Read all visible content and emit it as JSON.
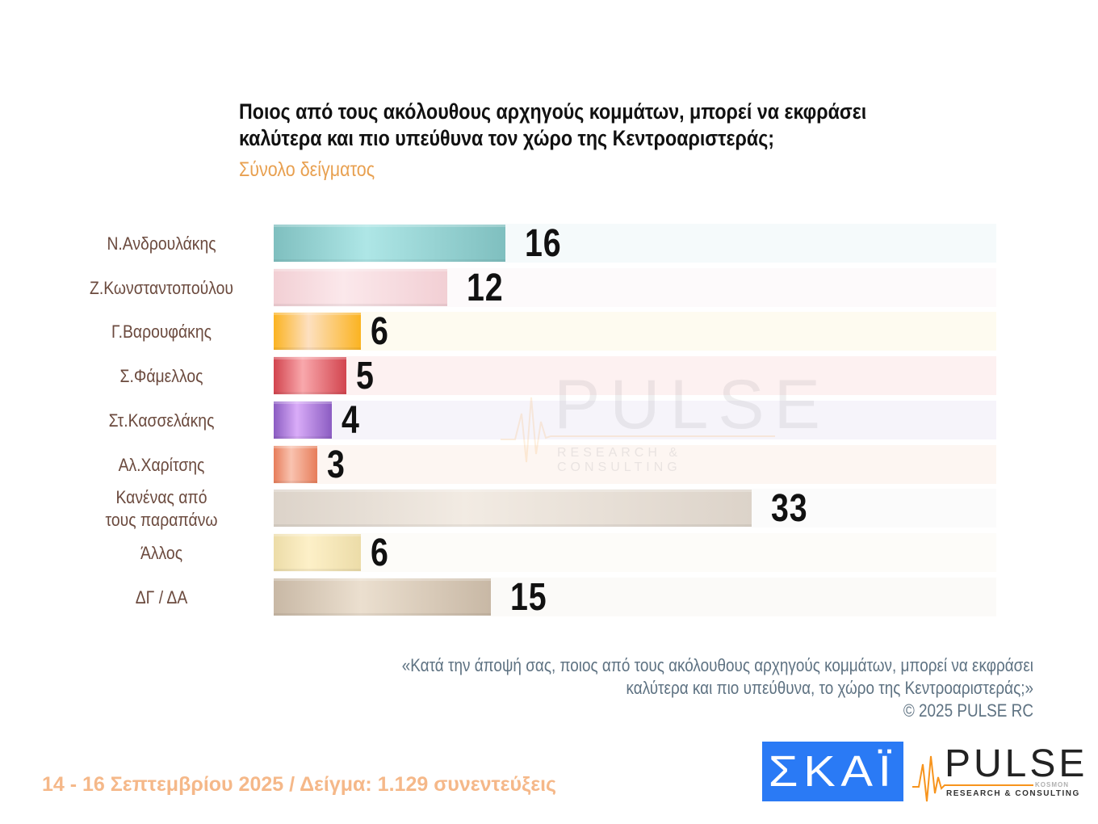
{
  "header": {
    "title_line1": "Ποιος από τους ακόλουθους αρχηγούς κομμάτων, μπορεί να εκφράσει",
    "title_line2": "καλύτερα και πιο υπεύθυνα τον χώρο της Κεντροαριστεράς;",
    "subtitle": "Σύνολο δείγματος"
  },
  "chart_data": {
    "type": "bar",
    "orientation": "horizontal",
    "title": "Ποιος από τους ακόλουθους αρχηγούς κομμάτων, μπορεί να εκφράσει καλύτερα και πιο υπεύθυνα τον χώρο της Κεντροαριστεράς;",
    "subtitle": "Σύνολο δείγματος",
    "xlabel": "",
    "ylabel": "",
    "unit": "%",
    "grid": false,
    "legend": "none",
    "categories": [
      "Ν.Ανδρουλάκης",
      "Ζ.Κωνσταντοπούλου",
      "Γ.Βαρουφάκης",
      "Σ.Φάμελλος",
      "Στ.Κασσελάκης",
      "Αλ.Χαρίτσης",
      "Κανένας από τους παραπάνω",
      "Άλλος",
      "ΔΓ / ΔΑ"
    ],
    "values": [
      16,
      12,
      6,
      5,
      4,
      3,
      33,
      6,
      15
    ]
  },
  "rows": [
    {
      "label": "Ν.Ανδρουλάκης",
      "value": "16",
      "num": 16,
      "color": "#7fbfbf",
      "light": "#aee6e6",
      "bg": "#f5fafb"
    },
    {
      "label": "Ζ.Κωνσταντοπούλου",
      "value": "12",
      "num": 12,
      "color": "#f2cfd4",
      "light": "#fbe8eb",
      "bg": "#fdfafb"
    },
    {
      "label": "Γ.Βαρουφάκης",
      "value": "6",
      "num": 6,
      "color": "#fbb321",
      "light": "#fde0c0",
      "bg": "#fefbf0"
    },
    {
      "label": "Σ.Φάμελλος",
      "value": "5",
      "num": 5,
      "color": "#d2444e",
      "light": "#f9a8ac",
      "bg": "#fdf1f1"
    },
    {
      "label": "Στ.Κασσελάκης",
      "value": "4",
      "num": 4,
      "color": "#8b5cc2",
      "light": "#d9acf8",
      "bg": "#f6f4fa"
    },
    {
      "label": "Αλ.Χαρίτσης",
      "value": "3",
      "num": 3,
      "color": "#e77d5a",
      "light": "#f9c3b0",
      "bg": "#fdf6f2"
    },
    {
      "label_line1": "Κανένας από",
      "label_line2": "τους παραπάνω",
      "value": "33",
      "num": 33,
      "color": "#dcd3c9",
      "light": "#f2ebe3",
      "bg": "#fbfbfb"
    },
    {
      "label": "Άλλος",
      "value": "6",
      "num": 6,
      "color": "#ecdca8",
      "light": "#fdf0c8",
      "bg": "#fdfcf9"
    },
    {
      "label": "ΔΓ / ΔΑ",
      "value": "15",
      "num": 15,
      "color": "#c8b8a5",
      "light": "#ebdfcf",
      "bg": "#fbfaf8"
    }
  ],
  "watermark": {
    "word": "PULSE",
    "sub": "RESEARCH & CONSULTING"
  },
  "note": {
    "line1": "«Κατά την άποψή σας, ποιος από τους ακόλουθους αρχηγούς κομμάτων, μπορεί να εκφράσει",
    "line2": "καλύτερα και πιο υπεύθυνα, το χώρο της Κεντροαριστεράς;»",
    "line3": "©  2025  PULSE RC"
  },
  "footer": {
    "date_sample": "14 - 16 Σεπτεμβρίου 2025  /  Δείγμα:  1.129 συνεντεύξεις"
  },
  "logos": {
    "skai": "ΣΚΑΪ",
    "pulse_word": "PULSE",
    "pulse_kosmon": "KOSMON",
    "pulse_sub": "RESEARCH & CONSULTING",
    "skai_color": "#2a7af5",
    "pulse_accent": "#f7941d"
  }
}
